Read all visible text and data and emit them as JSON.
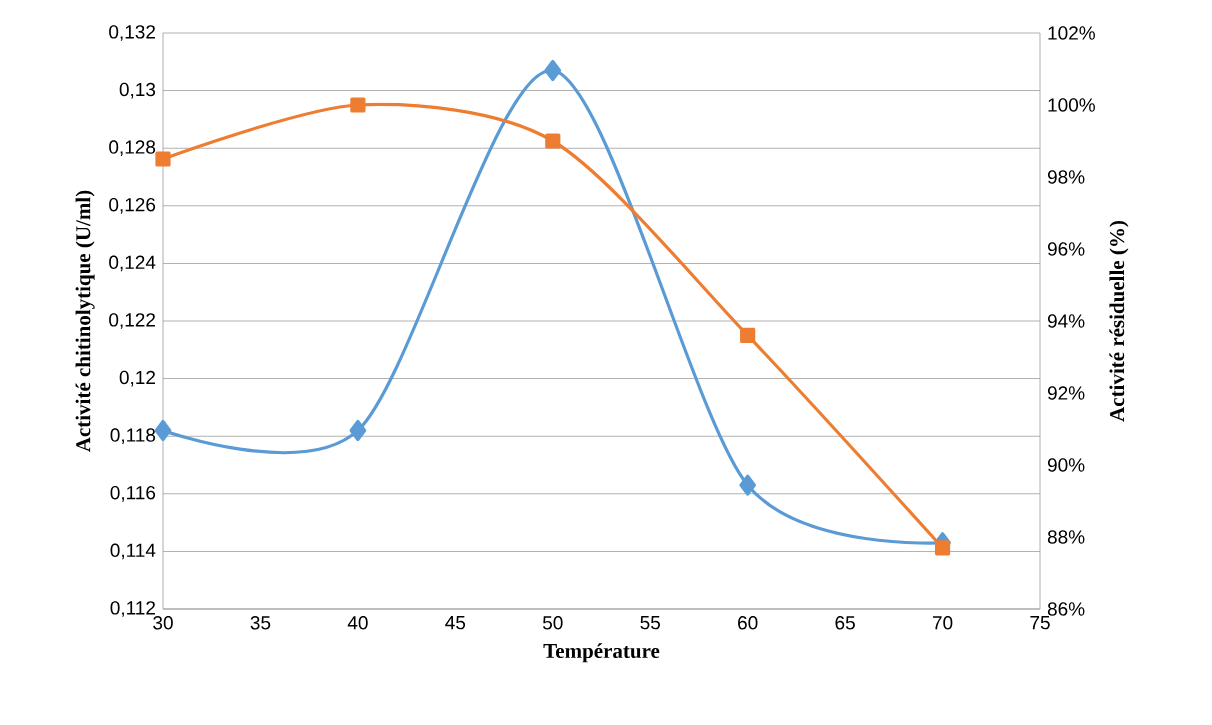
{
  "chart_data": {
    "type": "line",
    "xlabel": "Température",
    "ylabel": "Activité chitinolytique (U/ml)",
    "y2label": "Activité résiduelle (%)",
    "x": [
      30,
      40,
      50,
      60,
      70
    ],
    "xlim": [
      30,
      75
    ],
    "xticks": [
      30,
      35,
      40,
      45,
      50,
      55,
      60,
      65,
      70,
      75
    ],
    "ylim": [
      0.112,
      0.132
    ],
    "yticks": [
      {
        "value": 0.112,
        "label": "0,112"
      },
      {
        "value": 0.114,
        "label": "0,114"
      },
      {
        "value": 0.116,
        "label": "0,116"
      },
      {
        "value": 0.118,
        "label": "0,118"
      },
      {
        "value": 0.12,
        "label": "0,12"
      },
      {
        "value": 0.122,
        "label": "0,122"
      },
      {
        "value": 0.124,
        "label": "0,124"
      },
      {
        "value": 0.126,
        "label": "0,126"
      },
      {
        "value": 0.128,
        "label": "0,128"
      },
      {
        "value": 0.13,
        "label": "0,13"
      },
      {
        "value": 0.132,
        "label": "0,132"
      }
    ],
    "y2lim": [
      86,
      102
    ],
    "y2ticks": [
      {
        "value": 86,
        "label": "86%"
      },
      {
        "value": 88,
        "label": "88%"
      },
      {
        "value": 90,
        "label": "90%"
      },
      {
        "value": 92,
        "label": "92%"
      },
      {
        "value": 94,
        "label": "94%"
      },
      {
        "value": 96,
        "label": "96%"
      },
      {
        "value": 98,
        "label": "98%"
      },
      {
        "value": 100,
        "label": "100%"
      },
      {
        "value": 102,
        "label": "102%"
      }
    ],
    "grid": "y",
    "series": [
      {
        "color": "#5b9bd5",
        "marker": "diamond",
        "values": [
          0.1182,
          0.1182,
          0.1307,
          0.1163,
          0.1143
        ]
      },
      {
        "color": "#ed7d31",
        "marker": "square",
        "axis": "y2",
        "values": [
          98.5,
          100,
          99,
          93.6,
          87.7
        ]
      }
    ]
  }
}
